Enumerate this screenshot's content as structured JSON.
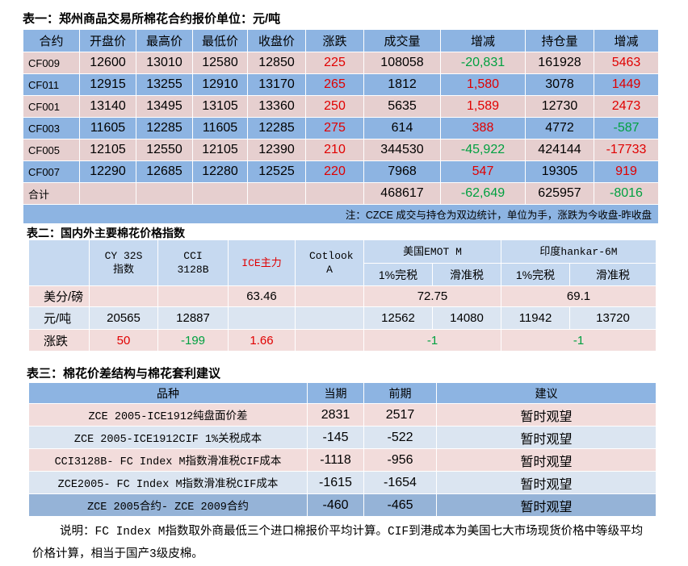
{
  "table1": {
    "title": "表一：郑州商品交易所棉花合约报价单位：元/吨",
    "header": [
      "合约",
      "开盘价",
      "最高价",
      "最低价",
      "收盘价",
      "涨跌",
      "成交量",
      "增减",
      "持仓量",
      "增减"
    ],
    "rows": [
      [
        "CF009",
        "12600",
        "13010",
        "12580",
        "12850",
        "225",
        "108058",
        "-20,831",
        "161928",
        "5463"
      ],
      [
        "CF011",
        "12915",
        "13255",
        "12910",
        "13170",
        "265",
        "1812",
        "1,580",
        "3078",
        "1449"
      ],
      [
        "CF001",
        "13140",
        "13495",
        "13105",
        "13360",
        "250",
        "5635",
        "1,589",
        "12730",
        "2473"
      ],
      [
        "CF003",
        "11605",
        "12285",
        "11605",
        "12285",
        "275",
        "614",
        "388",
        "4772",
        "-587"
      ],
      [
        "CF005",
        "12105",
        "12550",
        "12105",
        "12390",
        "210",
        "344530",
        "-45,922",
        "424144",
        "-17733"
      ],
      [
        "CF007",
        "12290",
        "12685",
        "12280",
        "12525",
        "220",
        "7968",
        "547",
        "19305",
        "919"
      ]
    ],
    "total": {
      "label": "合计",
      "cells": [
        "468617",
        "-62,649",
        "625957",
        "-8016"
      ]
    },
    "note": "注：CZCE 成交与持仓为双边统计，单位为手，涨跌为今收盘-昨收盘"
  },
  "table2": {
    "title": "表二：国内外主要棉花价格指数",
    "header": [
      "CY 32S指数",
      "CCI 3128B",
      "ICE主力",
      "Cotlook A",
      "美国EMOT M",
      "印度hankar-6M"
    ],
    "subheader": [
      "1%完税",
      "滑准税",
      "1%完税",
      "滑准税"
    ],
    "rows": [
      {
        "label": "美分/磅",
        "cells": [
          "63.46",
          "72.75",
          "69.1"
        ]
      },
      {
        "label": "元/吨",
        "cells": [
          "20565",
          "12887",
          "12562",
          "14080",
          "11942",
          "13720"
        ]
      },
      {
        "label": "涨跌",
        "cells": [
          "50",
          "-199",
          "1.66",
          "-1",
          "-1"
        ]
      }
    ]
  },
  "table3": {
    "title": "表三：棉花价差结构与棉花套利建议",
    "header": [
      "品种",
      "当期",
      "前期",
      "建议"
    ],
    "rows": [
      [
        "ZCE 2005-ICE1912纯盘面价差",
        "2831",
        "2517",
        "暂时观望"
      ],
      [
        "ZCE 2005-ICE1912CIF 1%关税成本",
        "-145",
        "-522",
        "暂时观望"
      ],
      [
        "CCI3128B- FC Index M指数滑准税CIF成本",
        "-1118",
        "-956",
        "暂时观望"
      ],
      [
        "ZCE2005- FC Index M指数滑准税CIF成本",
        "-1615",
        "-1654",
        "暂时观望"
      ],
      [
        "ZCE 2005合约- ZCE 2009合约",
        "-460",
        "-465",
        "暂时观望"
      ]
    ],
    "note": "说明：FC Index M指数取外商最低三个进口棉报价平均计算。CIF到港成本为美国七大市场现货价格中等级平均价格计算，相当于国产3级皮棉。"
  }
}
